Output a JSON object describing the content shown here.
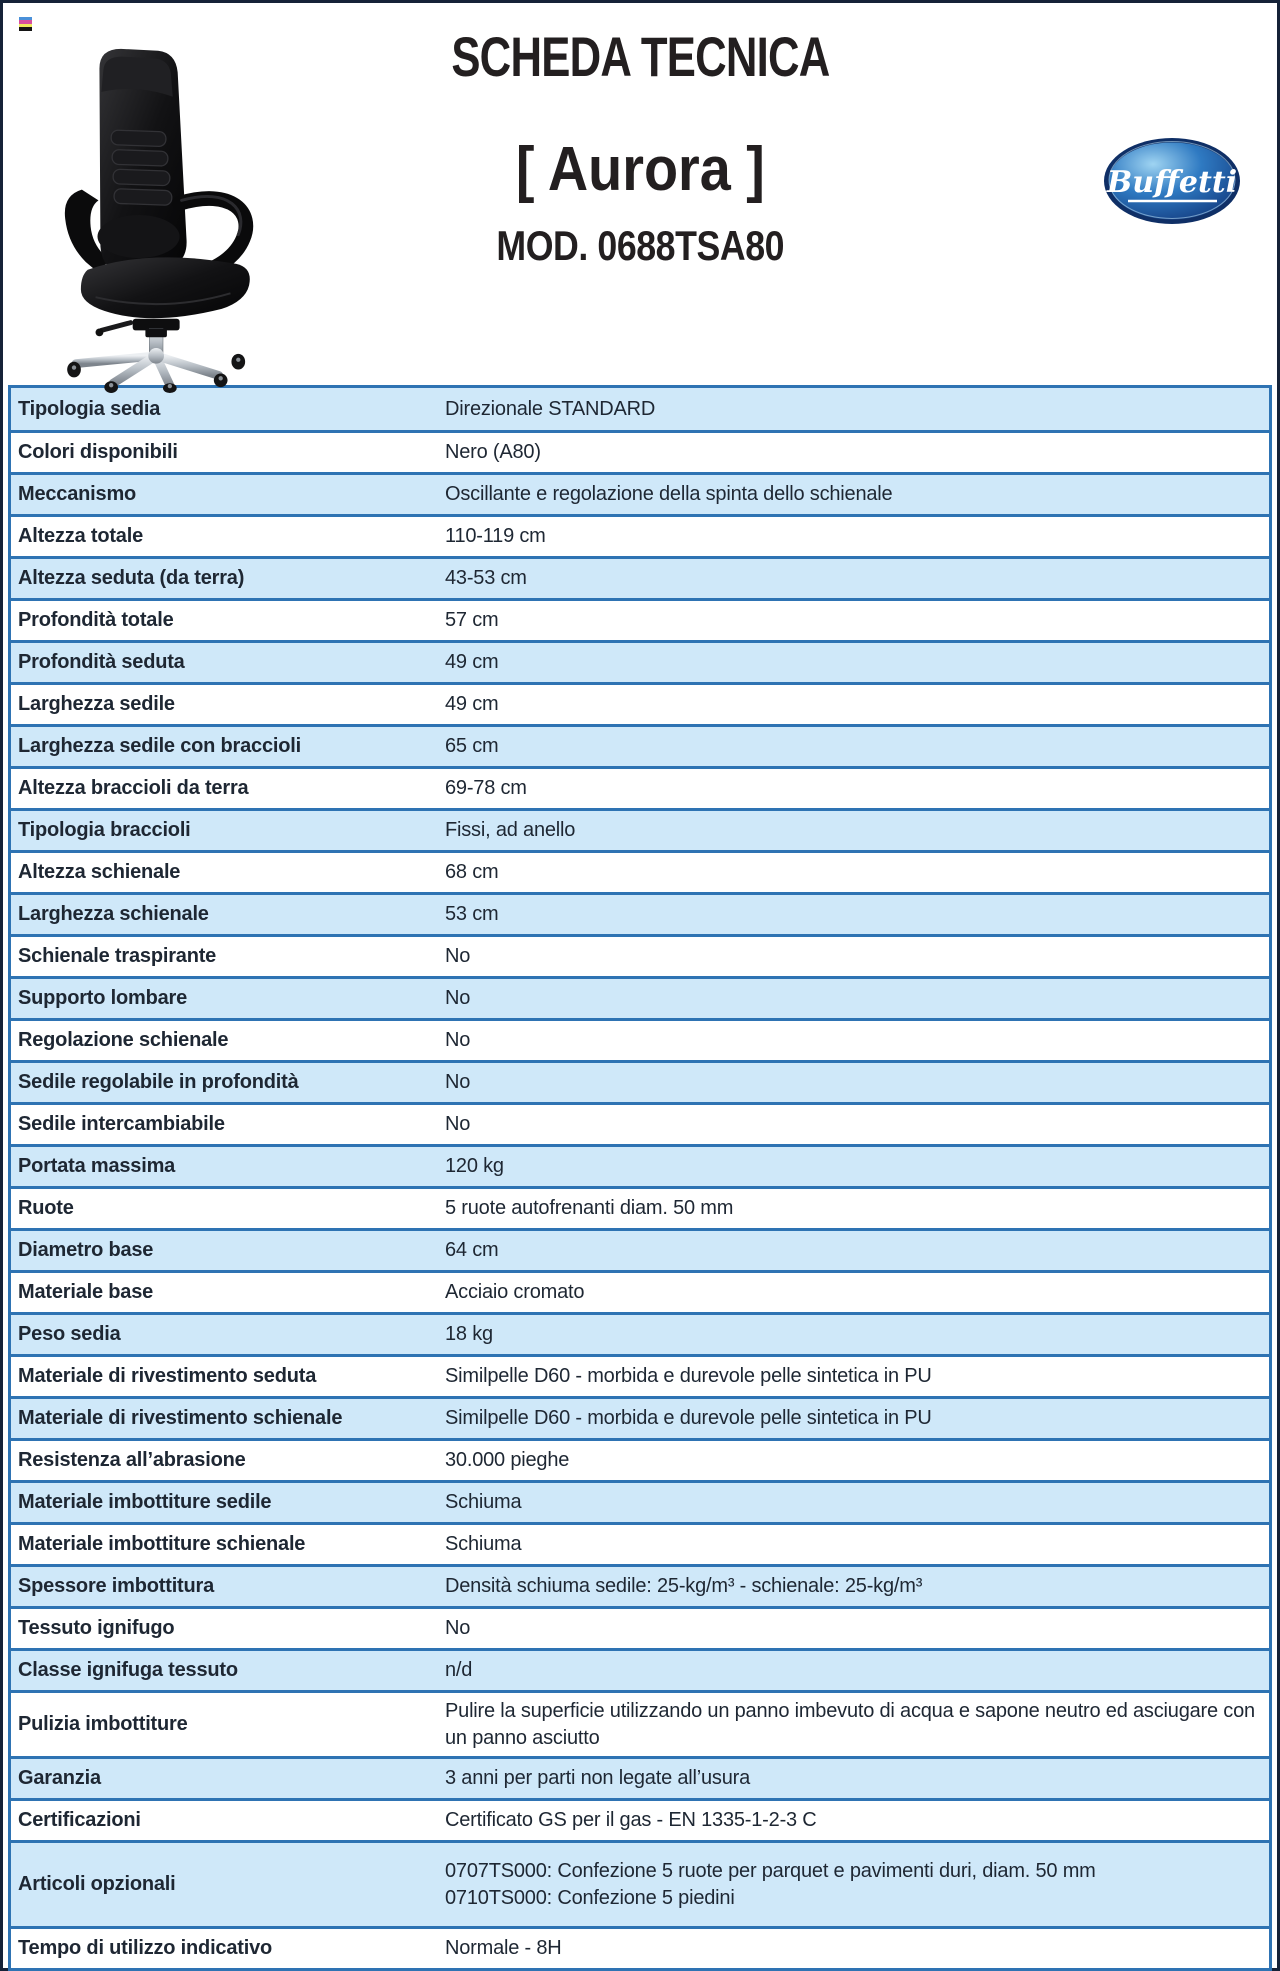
{
  "header": {
    "title": "SCHEDA TECNICA",
    "product_name": "[ Aurora ]",
    "model": "MOD. 0688TSA80",
    "brand": "Buffetti"
  },
  "colors": {
    "row_highlight_blue": "#cfe8f9",
    "table_border_blue": "#2e73b3",
    "page_border_navy": "#152238",
    "text_dark": "#1e2733",
    "logo_blue_dark": "#123a7e",
    "logo_blue_light": "#9fd4f2"
  },
  "table": {
    "rows": [
      {
        "label": "Tipologia sedia",
        "value": "Direzionale STANDARD"
      },
      {
        "label": "Colori disponibili",
        "value": "Nero (A80)"
      },
      {
        "label": "Meccanismo",
        "value": "Oscillante e regolazione della spinta dello schienale"
      },
      {
        "label": "Altezza totale",
        "value": "110-119 cm"
      },
      {
        "label": "Altezza seduta (da terra)",
        "value": "43-53 cm"
      },
      {
        "label": "Profondità totale",
        "value": "57 cm"
      },
      {
        "label": "Profondità seduta",
        "value": "49 cm"
      },
      {
        "label": "Larghezza sedile",
        "value": "49 cm"
      },
      {
        "label": "Larghezza sedile con braccioli",
        "value": "65 cm"
      },
      {
        "label": "Altezza braccioli da terra",
        "value": "69-78 cm"
      },
      {
        "label": "Tipologia braccioli",
        "value": "Fissi, ad anello"
      },
      {
        "label": "Altezza schienale",
        "value": "68 cm"
      },
      {
        "label": "Larghezza schienale",
        "value": "53 cm"
      },
      {
        "label": "Schienale traspirante",
        "value": "No"
      },
      {
        "label": "Supporto lombare",
        "value": "No"
      },
      {
        "label": "Regolazione schienale",
        "value": "No"
      },
      {
        "label": "Sedile regolabile in profondità",
        "value": "No"
      },
      {
        "label": "Sedile intercambiabile",
        "value": "No"
      },
      {
        "label": "Portata massima",
        "value": "120 kg"
      },
      {
        "label": "Ruote",
        "value": "5 ruote autofrenanti diam. 50 mm"
      },
      {
        "label": "Diametro base",
        "value": "64 cm"
      },
      {
        "label": "Materiale base",
        "value": "Acciaio cromato"
      },
      {
        "label": "Peso sedia",
        "value": "18 kg"
      },
      {
        "label": "Materiale di rivestimento seduta",
        "value": "Similpelle D60 - morbida e durevole pelle sintetica in PU"
      },
      {
        "label": "Materiale di rivestimento schienale",
        "value": "Similpelle D60 - morbida e durevole pelle sintetica in PU"
      },
      {
        "label": "Resistenza all’abrasione",
        "value": "30.000 pieghe"
      },
      {
        "label": "Materiale imbottiture sedile",
        "value": "Schiuma"
      },
      {
        "label": "Materiale imbottiture schienale",
        "value": "Schiuma"
      },
      {
        "label": "Spessore imbottitura",
        "value": "Densità schiuma sedile: 25-kg/m³ - schienale: 25-kg/m³"
      },
      {
        "label": "Tessuto ignifugo",
        "value": "No"
      },
      {
        "label": "Classe ignifuga tessuto",
        "value": "n/d"
      },
      {
        "label": "Pulizia imbottiture",
        "value": "Pulire la superficie utilizzando un panno imbevuto di acqua e sapone neutro ed asciugare con un panno asciutto"
      },
      {
        "label": "Garanzia",
        "value": "3 anni per parti non legate all’usura"
      },
      {
        "label": "Certificazioni",
        "value": "Certificato GS per il gas - EN 1335-1-2-3 C"
      },
      {
        "label": "Articoli opzionali",
        "value": "0707TS000: Confezione 5 ruote per parquet e pavimenti duri, diam. 50 mm\n0710TS000: Confezione 5 piedini"
      },
      {
        "label": "Tempo di utilizzo indicativo",
        "value": "Normale - 8H"
      }
    ]
  }
}
